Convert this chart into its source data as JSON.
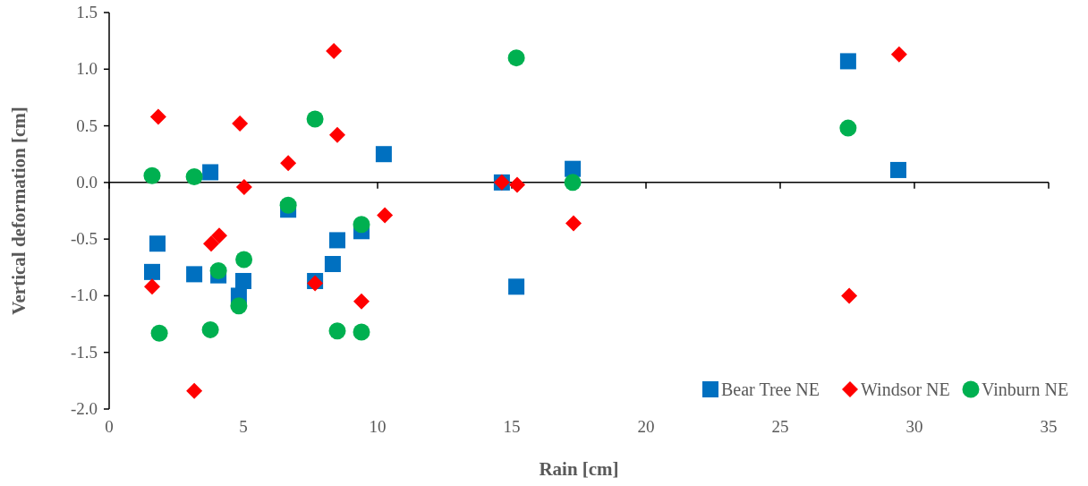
{
  "chart_data": {
    "type": "scatter",
    "xlabel": "Rain [cm]",
    "ylabel": "Vertical deformation [cm]",
    "xlim": [
      0,
      35
    ],
    "xticks": [
      0,
      5,
      10,
      15,
      20,
      25,
      30,
      35
    ],
    "ylim": [
      -2,
      1.5
    ],
    "yticks": [
      {
        "value": -2,
        "label": "-2.0"
      },
      {
        "value": -1.5,
        "label": "-1.5"
      },
      {
        "value": -1,
        "label": "-1.0"
      },
      {
        "value": -0.5,
        "label": "-0.5"
      },
      {
        "value": 0,
        "label": "0.0"
      },
      {
        "value": 0.5,
        "label": "0.5"
      },
      {
        "value": 1,
        "label": "1.0"
      },
      {
        "value": 1.5,
        "label": "1.5"
      }
    ],
    "legend": "bottom right",
    "series": [
      {
        "name": "Bear Tree NE",
        "color": "#0070c0",
        "marker": "square",
        "x": [
          1.6,
          1.8,
          3.17,
          3.77,
          4.07,
          4.83,
          5.0,
          6.67,
          7.67,
          8.33,
          8.5,
          9.4,
          10.23,
          14.63,
          15.17,
          17.27,
          27.53,
          29.4
        ],
        "values": [
          -0.79,
          -0.54,
          -0.81,
          0.09,
          -0.82,
          -1.0,
          -0.87,
          -0.24,
          -0.87,
          -0.72,
          -0.51,
          -0.43,
          0.25,
          0.0,
          -0.92,
          0.12,
          1.07,
          0.11
        ]
      },
      {
        "name": "Windsor NE",
        "color": "#ff0000",
        "marker": "diamond",
        "x": [
          1.83,
          1.6,
          3.17,
          3.8,
          4.1,
          4.87,
          5.03,
          6.67,
          7.67,
          8.37,
          8.5,
          9.4,
          10.27,
          14.63,
          15.2,
          17.3,
          27.57,
          29.43
        ],
        "values": [
          0.58,
          -0.92,
          -1.84,
          -0.54,
          -0.47,
          0.52,
          -0.04,
          0.17,
          -0.89,
          1.16,
          0.42,
          -1.05,
          -0.29,
          0.0,
          -0.02,
          -0.36,
          -1.0,
          1.13
        ]
      },
      {
        "name": "Vinburn NE",
        "color": "#00b050",
        "marker": "circle",
        "x": [
          1.6,
          1.87,
          3.17,
          3.77,
          4.07,
          5.02,
          4.83,
          6.67,
          7.67,
          8.5,
          9.4,
          9.4,
          15.17,
          17.27,
          27.53
        ],
        "values": [
          0.06,
          -1.33,
          0.05,
          -1.3,
          -0.78,
          -0.68,
          -1.09,
          -0.2,
          0.56,
          -1.31,
          -1.32,
          -0.37,
          1.1,
          0.0,
          0.48
        ]
      }
    ]
  }
}
